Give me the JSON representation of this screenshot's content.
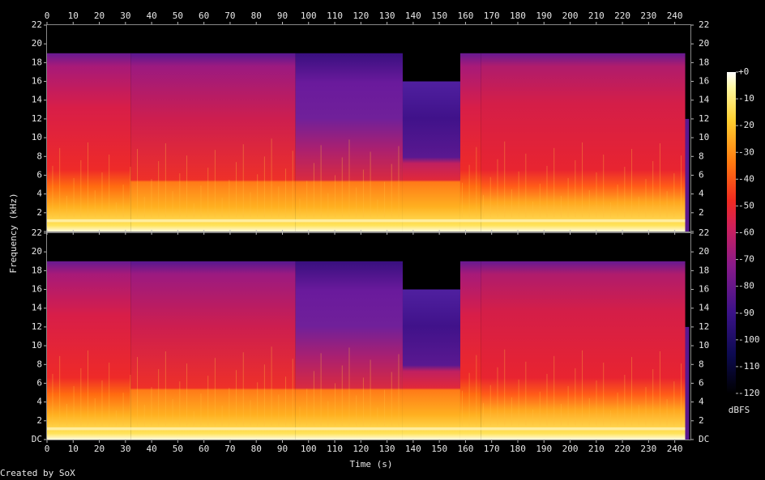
{
  "chart_data": {
    "type": "spectrogram",
    "channels": 2,
    "xlabel": "Time (s)",
    "ylabel": "Frequency (kHz)",
    "xlim": [
      0,
      246
    ],
    "xticks": [
      0,
      10,
      20,
      30,
      40,
      50,
      60,
      70,
      80,
      90,
      100,
      110,
      120,
      130,
      140,
      150,
      160,
      170,
      180,
      190,
      200,
      210,
      220,
      230,
      240
    ],
    "ylim": [
      0,
      22
    ],
    "yticks": [
      {
        "value": 0,
        "label": "DC"
      },
      2,
      4,
      6,
      8,
      10,
      12,
      14,
      16,
      18,
      20,
      22
    ],
    "colorbar": {
      "label": "dBFS",
      "clim": [
        -120,
        0
      ],
      "ticks": [
        {
          "value": 0,
          "label": "+0"
        },
        -10,
        -20,
        -30,
        -40,
        -50,
        -60,
        -70,
        -80,
        -90,
        -100,
        -110,
        -120
      ]
    },
    "footer": "Created by SoX"
  }
}
